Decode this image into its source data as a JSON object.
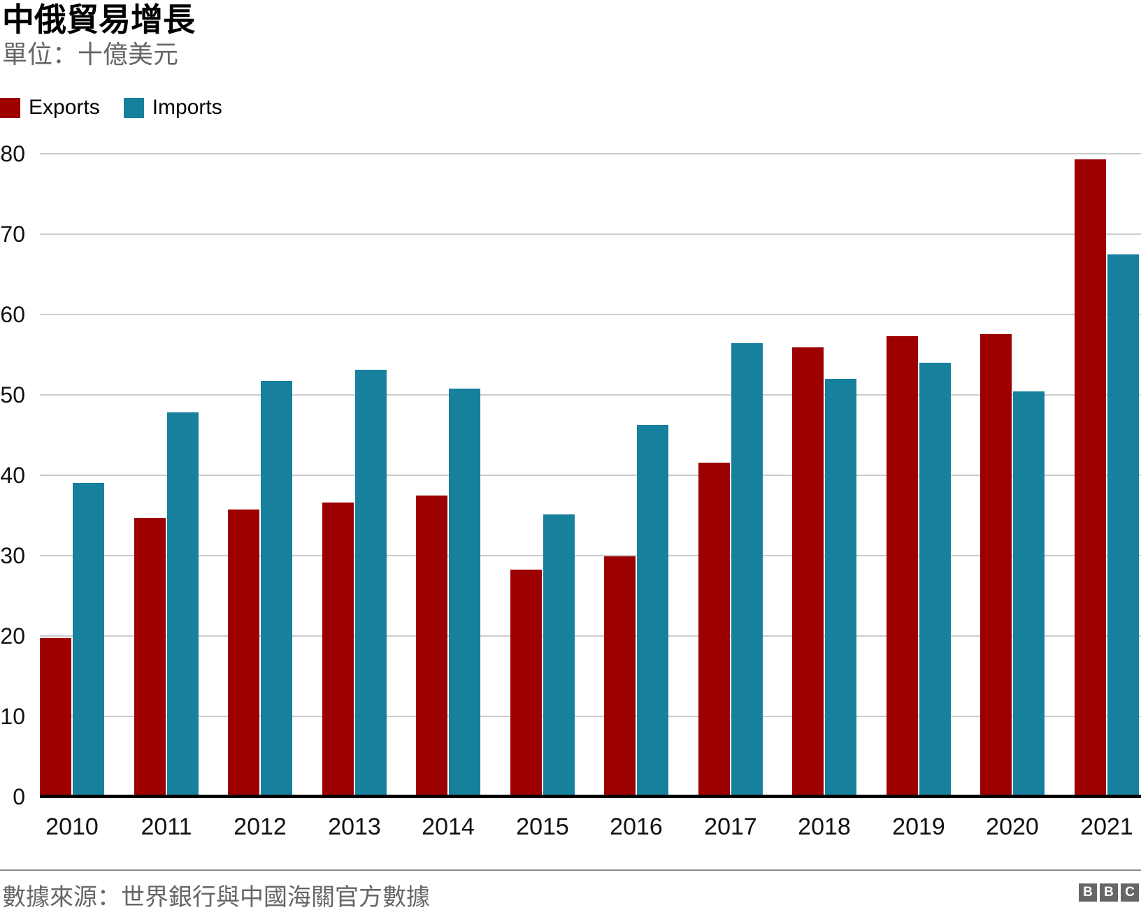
{
  "header": {
    "title": "中俄貿易增長",
    "subtitle": "單位：十億美元"
  },
  "legend": {
    "items": [
      {
        "label": "Exports",
        "color": "#9d0000"
      },
      {
        "label": "Imports",
        "color": "#17809d"
      }
    ]
  },
  "chart_data": {
    "type": "bar",
    "title": "中俄貿易增長",
    "subtitle": "單位：十億美元",
    "categories": [
      "2010",
      "2011",
      "2012",
      "2013",
      "2014",
      "2015",
      "2016",
      "2017",
      "2018",
      "2019",
      "2020",
      "2021"
    ],
    "series": [
      {
        "name": "Exports",
        "color": "#9d0000",
        "values": [
          19.7,
          34.7,
          35.7,
          36.6,
          37.5,
          28.3,
          29.9,
          41.6,
          55.9,
          57.3,
          57.6,
          79.3
        ]
      },
      {
        "name": "Imports",
        "color": "#17809d",
        "values": [
          39.0,
          47.8,
          51.7,
          53.1,
          50.8,
          35.1,
          46.3,
          56.4,
          52.0,
          54.0,
          50.4,
          67.5
        ]
      }
    ],
    "ylim": [
      0,
      80
    ],
    "yticks": [
      0,
      10,
      20,
      30,
      40,
      50,
      60,
      70,
      80
    ],
    "grid": true,
    "legend_position": "top-left"
  },
  "footer": {
    "source": "數據來源：世界銀行與中國海關官方數據",
    "logo_letters": [
      "B",
      "B",
      "C"
    ]
  }
}
